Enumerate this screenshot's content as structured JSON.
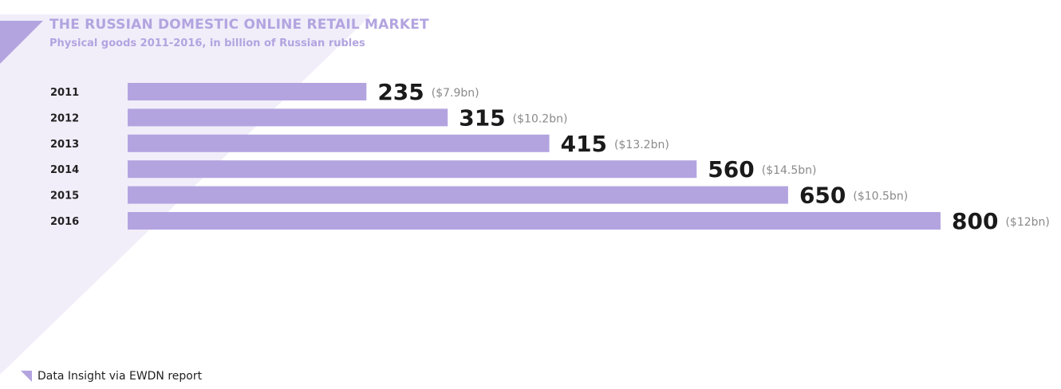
{
  "title": "THE RUSSIAN DOMESTIC ONLINE RETAIL MARKET",
  "subtitle": "Physical goods 2011-2016, in billion of Russian rubles",
  "source": "Data Insight via EWDN report",
  "colors": {
    "bar": "#b3a4e0",
    "title": "#b3a4e0",
    "triangle_light": "#f1eefa",
    "triangle_dark": "#b3a4e0"
  },
  "icons": {
    "source_marker": "triangle-marker-icon"
  },
  "chart_data": {
    "type": "bar",
    "orientation": "horizontal",
    "title": "THE RUSSIAN DOMESTIC ONLINE RETAIL MARKET",
    "subtitle": "Physical goods 2011-2016, in billion of Russian rubles",
    "categories": [
      "2011",
      "2012",
      "2013",
      "2014",
      "2015",
      "2016"
    ],
    "values": [
      235,
      315,
      415,
      560,
      650,
      800
    ],
    "value_labels": [
      "235",
      "315",
      "415",
      "560",
      "650",
      "800"
    ],
    "secondary_labels": [
      "($7.9bn)",
      "($10.2bn)",
      "($13.2bn)",
      "($14.5bn)",
      "($10.5bn)",
      "($12bn)"
    ],
    "xlim": [
      0,
      800
    ],
    "grid": false,
    "legend": "none"
  }
}
